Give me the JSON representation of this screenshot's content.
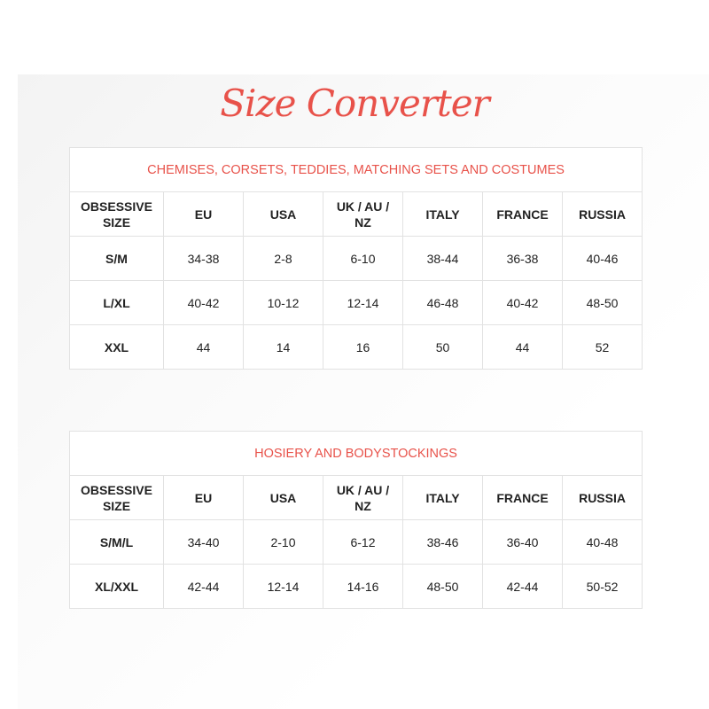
{
  "title": "Size Converter",
  "colors": {
    "accent": "#e8524a"
  },
  "tables": [
    {
      "caption": "CHEMISES, CORSETS, TEDDIES, MATCHING SETS AND COSTUMES",
      "headers": [
        "OBSESSIVE SIZE",
        "EU",
        "USA",
        "UK / AU / NZ",
        "ITALY",
        "FRANCE",
        "RUSSIA"
      ],
      "rows": [
        [
          "S/M",
          "34-38",
          "2-8",
          "6-10",
          "38-44",
          "36-38",
          "40-46"
        ],
        [
          "L/XL",
          "40-42",
          "10-12",
          "12-14",
          "46-48",
          "40-42",
          "48-50"
        ],
        [
          "XXL",
          "44",
          "14",
          "16",
          "50",
          "44",
          "52"
        ]
      ]
    },
    {
      "caption": "HOSIERY AND BODYSTOCKINGS",
      "headers": [
        "OBSESSIVE SIZE",
        "EU",
        "USA",
        "UK / AU / NZ",
        "ITALY",
        "FRANCE",
        "RUSSIA"
      ],
      "rows": [
        [
          "S/M/L",
          "34-40",
          "2-10",
          "6-12",
          "38-46",
          "36-40",
          "40-48"
        ],
        [
          "XL/XXL",
          "42-44",
          "12-14",
          "14-16",
          "48-50",
          "42-44",
          "50-52"
        ]
      ]
    }
  ]
}
